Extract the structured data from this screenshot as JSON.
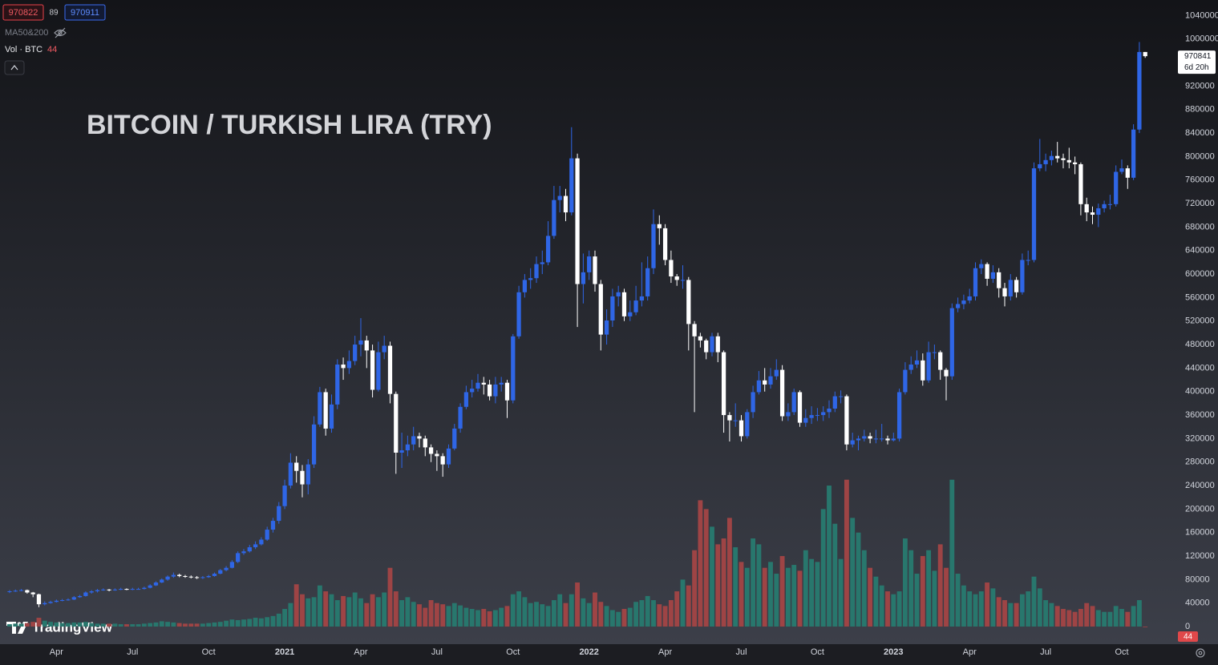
{
  "chart_data": {
    "type": "candlestick",
    "title": "BITCOIN / TURKISH LIRA (TRY)",
    "quote": {
      "sell": 970822,
      "spread": 89,
      "buy": 970911
    },
    "indicator_ma": "MA50&200",
    "indicator_vol": "Vol · BTC",
    "countdown": "6d 20h",
    "brand": "TradingView",
    "up_color": "#2f66e6",
    "down_color": "#ffffff",
    "volume_up_color": "#28776d",
    "volume_down_color": "#9e4445",
    "grid": false,
    "xlim": [
      -1.64,
      197.67
    ],
    "xticks": [
      {
        "value": 8,
        "label": "Apr"
      },
      {
        "value": 21,
        "label": "Jul"
      },
      {
        "value": 34,
        "label": "Oct"
      },
      {
        "value": 47,
        "label": "2021"
      },
      {
        "value": 60,
        "label": "Apr"
      },
      {
        "value": 73,
        "label": "Jul"
      },
      {
        "value": 86,
        "label": "Oct"
      },
      {
        "value": 99,
        "label": "2022"
      },
      {
        "value": 112,
        "label": "Apr"
      },
      {
        "value": 125,
        "label": "Jul"
      },
      {
        "value": 138,
        "label": "Oct"
      },
      {
        "value": 151,
        "label": "2023"
      },
      {
        "value": 164,
        "label": "Apr"
      },
      {
        "value": 177,
        "label": "Jul"
      },
      {
        "value": 190,
        "label": "Oct"
      }
    ],
    "ylim": [
      -24500,
      1066500
    ],
    "yticks": [
      0,
      40000,
      80000,
      120000,
      160000,
      200000,
      240000,
      280000,
      320000,
      360000,
      400000,
      440000,
      480000,
      520000,
      560000,
      600000,
      640000,
      680000,
      720000,
      760000,
      800000,
      840000,
      880000,
      920000,
      960000,
      1000000,
      1040000
    ],
    "open": [
      59000,
      60000,
      61000,
      62000,
      58000,
      55000,
      38000,
      40000,
      42000,
      44000,
      45000,
      46000,
      50000,
      52000,
      58000,
      60000,
      62000,
      63000,
      62000,
      63000,
      64000,
      63000,
      64000,
      64000,
      66000,
      70000,
      75000,
      80000,
      85000,
      88000,
      86000,
      85000,
      84000,
      83000,
      84000,
      86000,
      90000,
      96000,
      100000,
      110000,
      125000,
      128000,
      135000,
      140000,
      148000,
      165000,
      180000,
      205000,
      240000,
      279000,
      265000,
      242000,
      276000,
      344000,
      399000,
      337000,
      378000,
      446000,
      440000,
      452000,
      480000,
      487000,
      470000,
      403000,
      467000,
      478000,
      396000,
      296000,
      300000,
      310000,
      324000,
      320000,
      305000,
      294000,
      290000,
      276000,
      303000,
      337000,
      374000,
      399000,
      405000,
      415000,
      412000,
      392000,
      412000,
      415000,
      385000,
      494000,
      569000,
      590000,
      593000,
      617000,
      620000,
      665000,
      726000,
      733000,
      705000,
      797000,
      583000,
      603000,
      630000,
      583000,
      497000,
      521000,
      562000,
      569000,
      528000,
      535000,
      555000,
      562000,
      610000,
      685000,
      678000,
      624000,
      596000,
      590000,
      590000,
      515000,
      494000,
      487000,
      467000,
      494000,
      467000,
      360000,
      351000,
      351000,
      324000,
      365000,
      399000,
      419000,
      412000,
      426000,
      437000,
      358000,
      365000,
      399000,
      347000,
      355000,
      360000,
      360000,
      365000,
      371000,
      392000,
      392000,
      310000,
      317000,
      320000,
      324000,
      320000,
      320000,
      320000,
      317000,
      320000,
      399000,
      437000,
      446000,
      453000,
      419000,
      467000,
      467000,
      437000,
      426000,
      542000,
      549000,
      555000,
      562000,
      610000,
      617000,
      592000,
      603000,
      576000,
      562000,
      590000,
      569000,
      624000,
      624000,
      780000,
      787000,
      794000,
      801000,
      797000,
      794000,
      790000,
      787000,
      719000,
      705000,
      701000,
      712000,
      719000,
      719000,
      774000,
      780000,
      764000,
      846000,
      978000
    ],
    "high": [
      62000,
      63000,
      64000,
      63000,
      59000,
      56000,
      43000,
      44000,
      46000,
      47000,
      48000,
      52000,
      54000,
      60000,
      62000,
      64000,
      65000,
      64000,
      65000,
      66000,
      65000,
      66000,
      66000,
      68000,
      72000,
      77000,
      82000,
      87000,
      92000,
      90000,
      88000,
      87000,
      86000,
      86000,
      88000,
      92000,
      98000,
      103000,
      113000,
      128000,
      132000,
      139000,
      145000,
      152000,
      170000,
      185000,
      212000,
      250000,
      295000,
      290000,
      275000,
      285000,
      358000,
      408000,
      405000,
      395000,
      455000,
      458000,
      470000,
      495000,
      525000,
      495000,
      480000,
      485000,
      495000,
      485000,
      400000,
      330000,
      325000,
      340000,
      330000,
      325000,
      310000,
      300000,
      295000,
      310000,
      345000,
      380000,
      410000,
      420000,
      430000,
      425000,
      420000,
      425000,
      425000,
      420000,
      498000,
      580000,
      600000,
      610000,
      630000,
      640000,
      690000,
      750000,
      750000,
      745000,
      850000,
      805000,
      635000,
      640000,
      640000,
      590000,
      540000,
      575000,
      580000,
      575000,
      555000,
      580000,
      620000,
      630000,
      710000,
      700000,
      685000,
      640000,
      600000,
      615000,
      595000,
      520000,
      500000,
      490000,
      500000,
      500000,
      470000,
      365000,
      380000,
      360000,
      370000,
      410000,
      435000,
      440000,
      440000,
      455000,
      445000,
      380000,
      405000,
      402000,
      370000,
      375000,
      372000,
      375000,
      385000,
      400000,
      402000,
      395000,
      330000,
      325000,
      335000,
      330000,
      335000,
      345000,
      325000,
      330000,
      405000,
      450000,
      460000,
      470000,
      465000,
      485000,
      480000,
      470000,
      440000,
      550000,
      560000,
      565000,
      575000,
      620000,
      625000,
      620000,
      615000,
      610000,
      585000,
      600000,
      595000,
      635000,
      640000,
      790000,
      830000,
      805000,
      810000,
      825000,
      805000,
      815000,
      800000,
      790000,
      730000,
      715000,
      720000,
      725000,
      735000,
      785000,
      795000,
      785000,
      855000,
      995000,
      978000
    ],
    "low": [
      57000,
      59000,
      60000,
      56000,
      50000,
      33000,
      36000,
      39000,
      41000,
      43000,
      44000,
      45000,
      49000,
      51000,
      56000,
      58000,
      61000,
      60000,
      61000,
      62000,
      62000,
      62000,
      63000,
      63000,
      65000,
      69000,
      74000,
      78000,
      83000,
      84000,
      83000,
      82000,
      81000,
      81000,
      83000,
      85000,
      89000,
      94000,
      99000,
      108000,
      122000,
      126000,
      132000,
      138000,
      146000,
      160000,
      175000,
      200000,
      235000,
      245000,
      220000,
      225000,
      270000,
      340000,
      325000,
      330000,
      370000,
      420000,
      430000,
      445000,
      460000,
      440000,
      390000,
      400000,
      455000,
      380000,
      260000,
      270000,
      290000,
      300000,
      305000,
      290000,
      280000,
      265000,
      255000,
      270000,
      300000,
      330000,
      370000,
      390000,
      400000,
      395000,
      385000,
      380000,
      400000,
      355000,
      380000,
      490000,
      560000,
      575000,
      585000,
      600000,
      615000,
      660000,
      705000,
      690000,
      700000,
      510000,
      550000,
      590000,
      570000,
      470000,
      480000,
      510000,
      545000,
      520000,
      520000,
      530000,
      545000,
      555000,
      600000,
      650000,
      615000,
      585000,
      580000,
      575000,
      470000,
      365000,
      475000,
      455000,
      460000,
      450000,
      330000,
      315000,
      340000,
      315000,
      320000,
      355000,
      395000,
      400000,
      405000,
      420000,
      350000,
      350000,
      360000,
      340000,
      340000,
      345000,
      350000,
      350000,
      355000,
      365000,
      380000,
      300000,
      305000,
      300000,
      315000,
      312000,
      312000,
      315000,
      310000,
      315000,
      315000,
      395000,
      430000,
      440000,
      410000,
      415000,
      455000,
      420000,
      385000,
      420000,
      535000,
      540000,
      550000,
      555000,
      600000,
      580000,
      585000,
      560000,
      545000,
      555000,
      560000,
      565000,
      615000,
      620000,
      775000,
      775000,
      785000,
      790000,
      780000,
      780000,
      770000,
      700000,
      690000,
      685000,
      680000,
      705000,
      710000,
      715000,
      770000,
      745000,
      760000,
      840000,
      968000
    ],
    "close": [
      60000,
      61000,
      62000,
      58000,
      55000,
      38000,
      40000,
      42000,
      44000,
      45000,
      46000,
      50000,
      52000,
      58000,
      60000,
      62000,
      63000,
      62000,
      63000,
      64000,
      63000,
      64000,
      64000,
      66000,
      70000,
      75000,
      80000,
      85000,
      88000,
      86000,
      85000,
      84000,
      83000,
      84000,
      86000,
      90000,
      96000,
      100000,
      110000,
      125000,
      128000,
      135000,
      140000,
      148000,
      165000,
      180000,
      205000,
      240000,
      279000,
      265000,
      242000,
      276000,
      344000,
      399000,
      337000,
      378000,
      446000,
      440000,
      452000,
      480000,
      487000,
      470000,
      403000,
      467000,
      478000,
      396000,
      296000,
      300000,
      310000,
      324000,
      320000,
      305000,
      294000,
      290000,
      276000,
      303000,
      337000,
      374000,
      399000,
      405000,
      415000,
      412000,
      392000,
      412000,
      415000,
      385000,
      494000,
      569000,
      590000,
      593000,
      617000,
      620000,
      665000,
      726000,
      733000,
      705000,
      797000,
      583000,
      603000,
      630000,
      583000,
      497000,
      521000,
      562000,
      569000,
      528000,
      535000,
      555000,
      562000,
      610000,
      685000,
      678000,
      624000,
      596000,
      590000,
      590000,
      515000,
      494000,
      487000,
      467000,
      494000,
      467000,
      360000,
      351000,
      351000,
      324000,
      365000,
      399000,
      419000,
      412000,
      426000,
      437000,
      358000,
      365000,
      399000,
      347000,
      355000,
      360000,
      360000,
      365000,
      371000,
      392000,
      392000,
      310000,
      317000,
      320000,
      324000,
      320000,
      320000,
      320000,
      317000,
      320000,
      399000,
      437000,
      446000,
      453000,
      419000,
      467000,
      467000,
      437000,
      426000,
      542000,
      549000,
      555000,
      562000,
      610000,
      617000,
      592000,
      603000,
      576000,
      562000,
      590000,
      569000,
      624000,
      624000,
      780000,
      787000,
      794000,
      801000,
      797000,
      794000,
      790000,
      787000,
      719000,
      705000,
      701000,
      712000,
      719000,
      719000,
      774000,
      780000,
      764000,
      846000,
      978000,
      970841
    ],
    "volume": [
      4000,
      5000,
      5000,
      6000,
      8000,
      15000,
      10000,
      8000,
      7000,
      6000,
      6000,
      7000,
      7000,
      8000,
      6000,
      5000,
      5000,
      5000,
      5000,
      4000,
      4000,
      4000,
      4000,
      5000,
      6000,
      7000,
      9000,
      8000,
      7000,
      6000,
      5000,
      5000,
      5000,
      5000,
      6000,
      7000,
      8000,
      10000,
      12000,
      11000,
      12000,
      13000,
      15000,
      14000,
      16000,
      18000,
      22000,
      30000,
      40000,
      72000,
      55000,
      48000,
      50000,
      70000,
      60000,
      55000,
      45000,
      52000,
      50000,
      58000,
      48000,
      40000,
      55000,
      50000,
      58000,
      100000,
      60000,
      45000,
      50000,
      42000,
      38000,
      32000,
      45000,
      40000,
      38000,
      35000,
      40000,
      36000,
      32000,
      30000,
      28000,
      30000,
      26000,
      28000,
      32000,
      35000,
      55000,
      60000,
      50000,
      40000,
      42000,
      38000,
      35000,
      45000,
      55000,
      40000,
      55000,
      75000,
      48000,
      40000,
      58000,
      42000,
      35000,
      28000,
      25000,
      30000,
      32000,
      42000,
      45000,
      52000,
      45000,
      38000,
      35000,
      45000,
      60000,
      80000,
      70000,
      130000,
      215000,
      200000,
      170000,
      140000,
      150000,
      185000,
      135000,
      110000,
      100000,
      150000,
      140000,
      100000,
      110000,
      90000,
      120000,
      100000,
      105000,
      95000,
      130000,
      115000,
      110000,
      200000,
      240000,
      175000,
      115000,
      250000,
      185000,
      160000,
      130000,
      100000,
      85000,
      70000,
      60000,
      55000,
      60000,
      150000,
      130000,
      90000,
      120000,
      130000,
      95000,
      140000,
      100000,
      250000,
      90000,
      70000,
      60000,
      55000,
      60000,
      75000,
      65000,
      50000,
      45000,
      40000,
      40000,
      55000,
      60000,
      85000,
      65000,
      45000,
      40000,
      35000,
      30000,
      28000,
      25000,
      30000,
      40000,
      35000,
      28000,
      25000,
      25000,
      35000,
      30000,
      25000,
      35000,
      45000,
      44
    ]
  }
}
